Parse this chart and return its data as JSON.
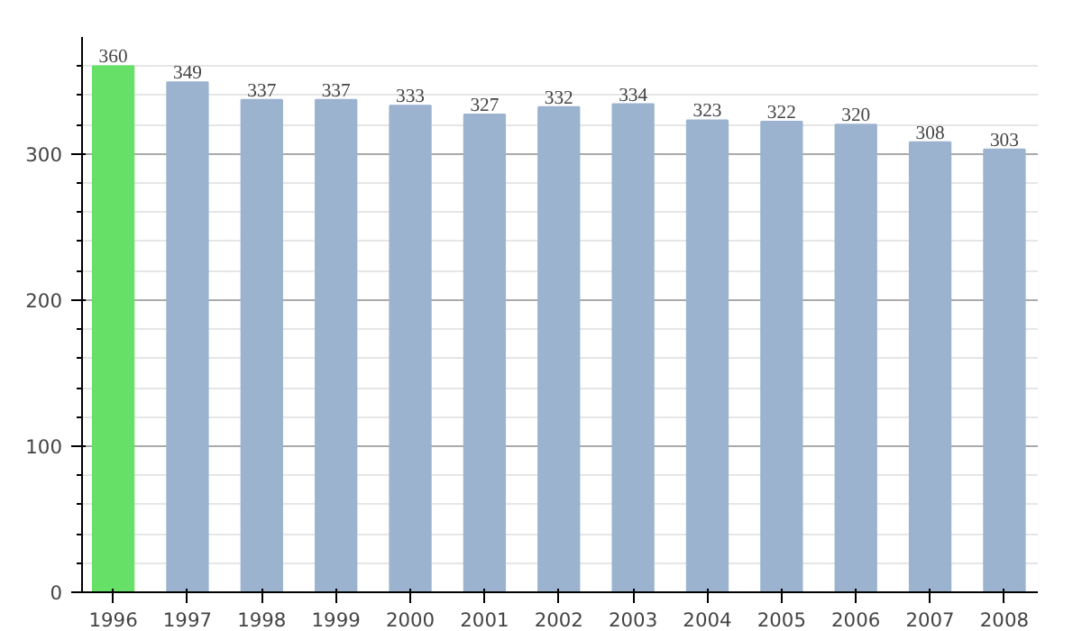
{
  "chart_data": {
    "type": "bar",
    "categories": [
      "1996",
      "1997",
      "1998",
      "1999",
      "2000",
      "2001",
      "2002",
      "2003",
      "2004",
      "2005",
      "2006",
      "2007",
      "2008"
    ],
    "values": [
      360,
      349,
      337,
      337,
      333,
      327,
      332,
      334,
      323,
      322,
      320,
      308,
      303
    ],
    "colors": [
      "#66e066",
      "#9bb3cf",
      "#9bb3cf",
      "#9bb3cf",
      "#9bb3cf",
      "#9bb3cf",
      "#9bb3cf",
      "#9bb3cf",
      "#9bb3cf",
      "#9bb3cf",
      "#9bb3cf",
      "#9bb3cf",
      "#9bb3cf"
    ],
    "ylim": [
      0,
      380
    ],
    "yticks": [
      0,
      {
        "value": 20,
        "label": null
      },
      {
        "value": 40,
        "label": null
      },
      {
        "value": 60,
        "label": null
      },
      {
        "value": 80,
        "label": null
      },
      100,
      {
        "value": 120,
        "label": null
      },
      {
        "value": 140,
        "label": null
      },
      {
        "value": 160,
        "label": null
      },
      {
        "value": 180,
        "label": null
      },
      200,
      {
        "value": 220,
        "label": null
      },
      {
        "value": 240,
        "label": null
      },
      {
        "value": 260,
        "label": null
      },
      {
        "value": 280,
        "label": null
      },
      300,
      {
        "value": 320,
        "label": null
      },
      {
        "value": 340,
        "label": null
      },
      {
        "value": 360,
        "label": null
      }
    ],
    "grid": "y",
    "data_labels": true
  }
}
